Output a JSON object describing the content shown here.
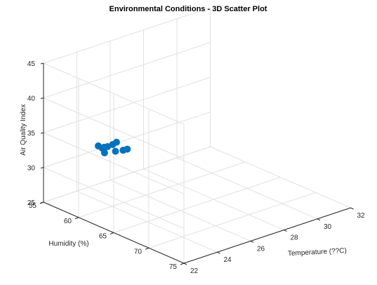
{
  "chart_data": {
    "type": "scatter3d",
    "title": "Environmental Conditions - 3D Scatter Plot",
    "xlabel": "Temperature (??C)",
    "ylabel": "Humidity (%)",
    "zlabel": "Air Quality Index",
    "xlim": [
      22,
      32
    ],
    "ylim": [
      55,
      75
    ],
    "zlim": [
      25,
      45
    ],
    "xticks": [
      "22",
      "24",
      "26",
      "28",
      "30",
      "32"
    ],
    "yticks": [
      "55",
      "60",
      "65",
      "70",
      "75"
    ],
    "zticks": [
      "25",
      "30",
      "35",
      "40",
      "45"
    ],
    "grid": true,
    "marker_color": "#0072BD",
    "points": [
      {
        "x": 22.5,
        "y": 62.5,
        "z": 35.0
      },
      {
        "x": 23.0,
        "y": 61.0,
        "z": 34.6
      },
      {
        "x": 23.4,
        "y": 60.3,
        "z": 34.1
      },
      {
        "x": 23.9,
        "y": 59.6,
        "z": 33.5
      },
      {
        "x": 24.5,
        "y": 58.9,
        "z": 33.0
      },
      {
        "x": 24.4,
        "y": 57.1,
        "z": 32.1
      },
      {
        "x": 25.2,
        "y": 57.8,
        "z": 32.3
      },
      {
        "x": 25.6,
        "y": 56.7,
        "z": 30.2
      },
      {
        "x": 26.1,
        "y": 56.6,
        "z": 29.9
      },
      {
        "x": 26.6,
        "y": 56.0,
        "z": 29.4
      }
    ]
  }
}
